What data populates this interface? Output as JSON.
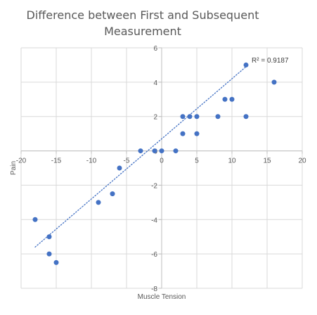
{
  "chart_data": {
    "type": "scatter",
    "title_lines": [
      "Difference between First and Subsequent",
      "Measurement"
    ],
    "xlabel": "Muscle Tension",
    "ylabel": "Pain",
    "xlim": [
      -20,
      20
    ],
    "ylim": [
      -8,
      6
    ],
    "x_ticks": [
      -20,
      -15,
      -10,
      -5,
      0,
      5,
      10,
      15,
      20
    ],
    "y_ticks": [
      -8,
      -6,
      -4,
      -2,
      0,
      2,
      4,
      6
    ],
    "grid": true,
    "marker_color": "#4472C4",
    "trendline": {
      "type": "linear",
      "x_range": [
        -18,
        12
      ],
      "y_range": [
        -5.6,
        4.9
      ],
      "r2_label": "R² = 0.9187",
      "color": "#4472C4",
      "style": "dotted"
    },
    "points": [
      {
        "x": -18,
        "y": -4
      },
      {
        "x": -16,
        "y": -5
      },
      {
        "x": -16,
        "y": -6
      },
      {
        "x": -15,
        "y": -6.5
      },
      {
        "x": -9,
        "y": -3
      },
      {
        "x": -7,
        "y": -2.5
      },
      {
        "x": -6,
        "y": -1
      },
      {
        "x": -3,
        "y": 0
      },
      {
        "x": -1,
        "y": 0
      },
      {
        "x": 0,
        "y": 0
      },
      {
        "x": 2,
        "y": 0
      },
      {
        "x": 3,
        "y": 1
      },
      {
        "x": 3,
        "y": 2
      },
      {
        "x": 4,
        "y": 2
      },
      {
        "x": 5,
        "y": 2
      },
      {
        "x": 5,
        "y": 1
      },
      {
        "x": 8,
        "y": 2
      },
      {
        "x": 9,
        "y": 3
      },
      {
        "x": 10,
        "y": 3
      },
      {
        "x": 12,
        "y": 2
      },
      {
        "x": 12,
        "y": 5
      },
      {
        "x": 16,
        "y": 4
      }
    ]
  }
}
